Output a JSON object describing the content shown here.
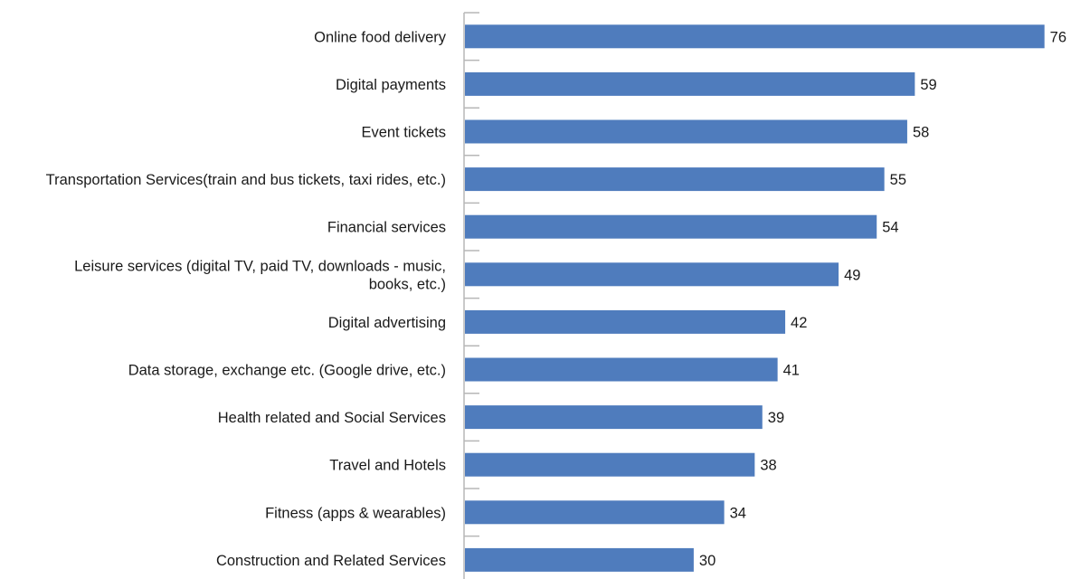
{
  "chart_data": {
    "type": "bar",
    "orientation": "horizontal",
    "categories": [
      "Online food delivery",
      "Digital payments",
      "Event tickets",
      "Transportation Services(train and bus tickets, taxi rides, etc.)",
      "Financial services",
      "Leisure services (digital TV, paid TV, downloads - music, books, etc.)",
      "Digital advertising",
      "Data storage, exchange etc. (Google drive, etc.)",
      "Health related and Social Services",
      "Travel and Hotels",
      "Fitness (apps & wearables)",
      "Construction and Related Services"
    ],
    "category_label_lines": [
      [
        "Online food delivery"
      ],
      [
        "Digital payments"
      ],
      [
        "Event tickets"
      ],
      [
        "Transportation Services(train and bus tickets, taxi rides, etc.)"
      ],
      [
        "Financial services"
      ],
      [
        "Leisure services (digital TV, paid TV, downloads - music,",
        "books, etc.)"
      ],
      [
        "Digital advertising"
      ],
      [
        "Data storage, exchange etc. (Google drive, etc.)"
      ],
      [
        "Health related and Social Services"
      ],
      [
        "Travel and Hotels"
      ],
      [
        "Fitness (apps & wearables)"
      ],
      [
        "Construction and Related Services"
      ]
    ],
    "values": [
      76,
      59,
      58,
      55,
      54,
      49,
      42,
      41,
      39,
      38,
      34,
      30
    ],
    "xlim": [
      0,
      76
    ],
    "title": "",
    "xlabel": "",
    "ylabel": "",
    "grid": false,
    "data_labels": true,
    "bar_color": "#4f7cbd",
    "axis_color": "#b7b7b7"
  }
}
